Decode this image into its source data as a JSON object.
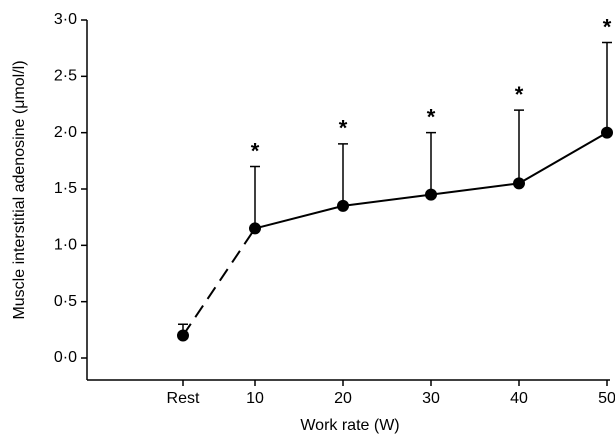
{
  "chart_data": {
    "type": "line",
    "x_label": "Work rate (W)",
    "y_label": "Muscle interstitial adenosine (μmol/l)",
    "categories": [
      "Rest",
      "10",
      "20",
      "30",
      "40",
      "50"
    ],
    "values": [
      0.2,
      1.15,
      1.35,
      1.45,
      1.55,
      2.0
    ],
    "errors": [
      0.1,
      0.55,
      0.55,
      0.55,
      0.65,
      0.8
    ],
    "significance": [
      null,
      "*",
      "*",
      "*",
      "*",
      "*"
    ],
    "first_segment_dashed": true,
    "color": "#000000",
    "ylim": [
      0,
      3
    ],
    "yticks": [
      {
        "value": 0,
        "label": "0·0"
      },
      {
        "value": 0.5,
        "label": "0·5"
      },
      {
        "value": 1,
        "label": "1·0"
      },
      {
        "value": 1.5,
        "label": "1·5"
      },
      {
        "value": 2,
        "label": "2·0"
      },
      {
        "value": 2.5,
        "label": "2·5"
      },
      {
        "value": 3,
        "label": "3·0"
      }
    ]
  }
}
